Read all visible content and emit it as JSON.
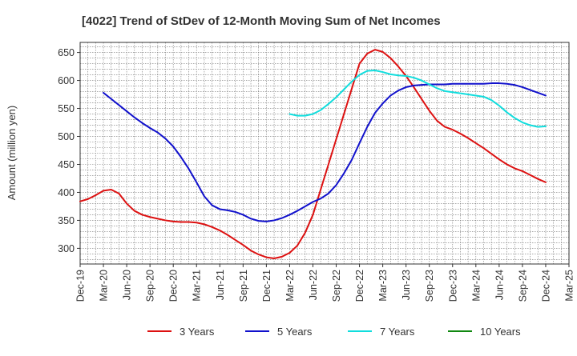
{
  "chart_data": {
    "type": "line",
    "title": "[4022]  Trend of StDev of 12-Month Moving Sum of Net Incomes",
    "ylabel": "Amount (million yen)",
    "xlabel": "",
    "ylim": [
      272,
      668
    ],
    "yticks": [
      300,
      350,
      400,
      450,
      500,
      550,
      600,
      650
    ],
    "x_range": [
      "2019-12",
      "2025-03"
    ],
    "xticks": [
      "Dec-19",
      "Mar-20",
      "Jun-20",
      "Sep-20",
      "Dec-20",
      "Mar-21",
      "Jun-21",
      "Sep-21",
      "Dec-21",
      "Mar-22",
      "Jun-22",
      "Sep-22",
      "Dec-22",
      "Mar-23",
      "Jun-23",
      "Sep-23",
      "Dec-23",
      "Mar-24",
      "Jun-24",
      "Sep-24",
      "Dec-24",
      "Mar-25"
    ],
    "grid": true,
    "legend_position": "bottom",
    "series": [
      {
        "name": "3 Years",
        "color": "#dd1111",
        "x": [
          "2019-12",
          "2020-01",
          "2020-02",
          "2020-03",
          "2020-04",
          "2020-05",
          "2020-06",
          "2020-07",
          "2020-08",
          "2020-09",
          "2020-10",
          "2020-11",
          "2020-12",
          "2021-01",
          "2021-02",
          "2021-03",
          "2021-04",
          "2021-05",
          "2021-06",
          "2021-07",
          "2021-08",
          "2021-09",
          "2021-10",
          "2021-11",
          "2021-12",
          "2022-01",
          "2022-02",
          "2022-03",
          "2022-04",
          "2022-05",
          "2022-06",
          "2022-07",
          "2022-08",
          "2022-09",
          "2022-10",
          "2022-11",
          "2022-12",
          "2023-01",
          "2023-02",
          "2023-03",
          "2023-04",
          "2023-05",
          "2023-06",
          "2023-07",
          "2023-08",
          "2023-09",
          "2023-10",
          "2023-11",
          "2023-12",
          "2024-01",
          "2024-02",
          "2024-03",
          "2024-04",
          "2024-05",
          "2024-06",
          "2024-07",
          "2024-08",
          "2024-09",
          "2024-10",
          "2024-11",
          "2024-12"
        ],
        "values": [
          384,
          388,
          395,
          403,
          405,
          398,
          380,
          367,
          360,
          356,
          353,
          350,
          348,
          347,
          347,
          346,
          343,
          338,
          332,
          324,
          315,
          306,
          296,
          289,
          284,
          282,
          285,
          292,
          305,
          328,
          360,
          405,
          450,
          495,
          540,
          585,
          630,
          648,
          655,
          651,
          640,
          625,
          608,
          588,
          567,
          546,
          528,
          517,
          512,
          505,
          497,
          488,
          479,
          469,
          459,
          450,
          443,
          438,
          431,
          424,
          418
        ]
      },
      {
        "name": "5 Years",
        "color": "#1111cc",
        "x": [
          "2020-03",
          "2020-04",
          "2020-05",
          "2020-06",
          "2020-07",
          "2020-08",
          "2020-09",
          "2020-10",
          "2020-11",
          "2020-12",
          "2021-01",
          "2021-02",
          "2021-03",
          "2021-04",
          "2021-05",
          "2021-06",
          "2021-07",
          "2021-08",
          "2021-09",
          "2021-10",
          "2021-11",
          "2021-12",
          "2022-01",
          "2022-02",
          "2022-03",
          "2022-04",
          "2022-05",
          "2022-06",
          "2022-07",
          "2022-08",
          "2022-09",
          "2022-10",
          "2022-11",
          "2022-12",
          "2023-01",
          "2023-02",
          "2023-03",
          "2023-04",
          "2023-05",
          "2023-06",
          "2023-07",
          "2023-08",
          "2023-09",
          "2023-10",
          "2023-11",
          "2023-12",
          "2024-01",
          "2024-02",
          "2024-03",
          "2024-04",
          "2024-05",
          "2024-06",
          "2024-07",
          "2024-08",
          "2024-09",
          "2024-10",
          "2024-11",
          "2024-12"
        ],
        "values": [
          578,
          567,
          556,
          545,
          534,
          524,
          515,
          507,
          496,
          482,
          463,
          442,
          418,
          393,
          377,
          370,
          368,
          365,
          360,
          353,
          349,
          348,
          350,
          354,
          360,
          367,
          375,
          383,
          389,
          398,
          413,
          434,
          458,
          488,
          517,
          542,
          559,
          573,
          582,
          588,
          591,
          592,
          593,
          593,
          593,
          594,
          594,
          594,
          594,
          594,
          595,
          595,
          594,
          592,
          588,
          583,
          578,
          573
        ]
      },
      {
        "name": "7 Years",
        "color": "#11dddd",
        "x": [
          "2022-03",
          "2022-04",
          "2022-05",
          "2022-06",
          "2022-07",
          "2022-08",
          "2022-09",
          "2022-10",
          "2022-11",
          "2022-12",
          "2023-01",
          "2023-02",
          "2023-03",
          "2023-04",
          "2023-05",
          "2023-06",
          "2023-07",
          "2023-08",
          "2023-09",
          "2023-10",
          "2023-11",
          "2023-12",
          "2024-01",
          "2024-02",
          "2024-03",
          "2024-04",
          "2024-05",
          "2024-06",
          "2024-07",
          "2024-08",
          "2024-09",
          "2024-10",
          "2024-11",
          "2024-12"
        ],
        "values": [
          540,
          537,
          537,
          540,
          547,
          558,
          570,
          584,
          598,
          610,
          617,
          618,
          615,
          611,
          609,
          608,
          605,
          600,
          593,
          586,
          581,
          579,
          577,
          575,
          573,
          571,
          565,
          555,
          543,
          533,
          525,
          520,
          517,
          518
        ]
      },
      {
        "name": "10 Years",
        "color": "#118811",
        "x": [],
        "values": []
      }
    ]
  }
}
